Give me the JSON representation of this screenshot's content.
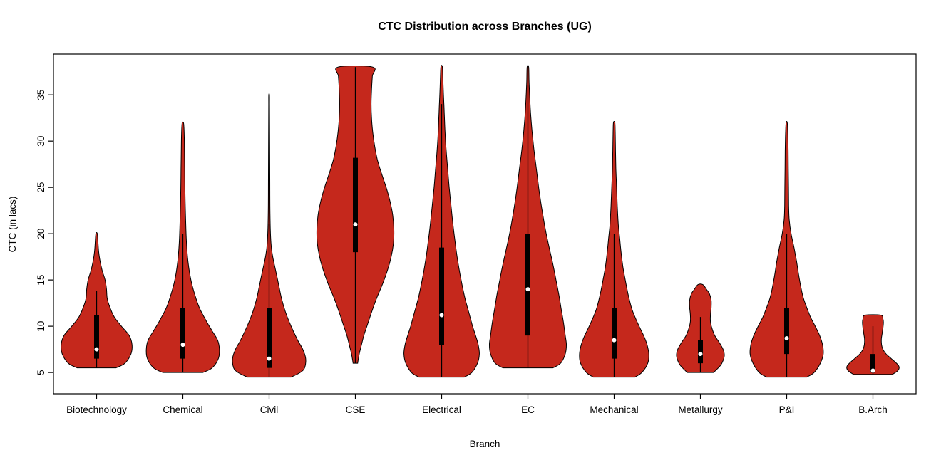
{
  "chart_data": {
    "type": "violin",
    "title": "CTC Distribution across Branches (UG)",
    "xlabel": "Branch",
    "ylabel": "CTC (in lacs)",
    "y_ticks": [
      5,
      10,
      15,
      20,
      25,
      30,
      35
    ],
    "y_domain": [
      2.7,
      39.4
    ],
    "grid": false,
    "legend": "none",
    "colors": {
      "violin_fill": "#C5281C",
      "violin_stroke": "#000000",
      "box": "#000000",
      "whisker": "#000000",
      "median_dot": "#FFFFFF",
      "frame": "#000000"
    },
    "categories": [
      "Biotechnology",
      "Chemical",
      "Civil",
      "CSE",
      "Electrical",
      "EC",
      "Mechanical",
      "Metallurgy",
      "P&I",
      "B.Arch"
    ],
    "series": [
      {
        "name": "Biotechnology",
        "min": 5.5,
        "max": 20,
        "q1": 6.5,
        "median": 7.5,
        "q3": 11.2,
        "whisker_low": 5.5,
        "whisker_high": 13.8,
        "wex": 0.92,
        "profile": [
          [
            5.5,
            0.55
          ],
          [
            6,
            0.8
          ],
          [
            7,
            0.97
          ],
          [
            8,
            1.0
          ],
          [
            9,
            0.92
          ],
          [
            10,
            0.7
          ],
          [
            11,
            0.5
          ],
          [
            12,
            0.38
          ],
          [
            13,
            0.3
          ],
          [
            14,
            0.28
          ],
          [
            15,
            0.24
          ],
          [
            16,
            0.16
          ],
          [
            17,
            0.1
          ],
          [
            18,
            0.06
          ],
          [
            19,
            0.04
          ],
          [
            20,
            0.02
          ]
        ]
      },
      {
        "name": "Chemical",
        "min": 5,
        "max": 32,
        "q1": 6.5,
        "median": 8,
        "q3": 12,
        "whisker_low": 5,
        "whisker_high": 20,
        "wex": 0.95,
        "profile": [
          [
            5,
            0.55
          ],
          [
            5.5,
            0.8
          ],
          [
            6.5,
            0.97
          ],
          [
            7.5,
            1.0
          ],
          [
            8.5,
            0.95
          ],
          [
            9.5,
            0.8
          ],
          [
            10.5,
            0.65
          ],
          [
            12,
            0.45
          ],
          [
            13.5,
            0.32
          ],
          [
            15,
            0.22
          ],
          [
            17,
            0.14
          ],
          [
            19,
            0.1
          ],
          [
            21,
            0.08
          ],
          [
            24,
            0.06
          ],
          [
            27,
            0.05
          ],
          [
            30,
            0.04
          ],
          [
            31.5,
            0.03
          ],
          [
            32,
            0.015
          ]
        ]
      },
      {
        "name": "Civil",
        "min": 4.5,
        "max": 35,
        "q1": 5.5,
        "median": 6.5,
        "q3": 12,
        "whisker_low": 4.5,
        "whisker_high": 21,
        "wex": 0.95,
        "profile": [
          [
            4.5,
            0.6
          ],
          [
            5,
            0.85
          ],
          [
            5.5,
            0.97
          ],
          [
            6.5,
            1.0
          ],
          [
            7.5,
            0.92
          ],
          [
            8.5,
            0.78
          ],
          [
            10,
            0.6
          ],
          [
            11.5,
            0.45
          ],
          [
            13,
            0.34
          ],
          [
            14.5,
            0.26
          ],
          [
            16,
            0.18
          ],
          [
            17.5,
            0.1
          ],
          [
            19,
            0.05
          ],
          [
            22,
            0.025
          ],
          [
            26,
            0.02
          ],
          [
            30,
            0.015
          ],
          [
            34,
            0.012
          ],
          [
            35,
            0.01
          ]
        ]
      },
      {
        "name": "CSE",
        "min": 6,
        "max": 38,
        "q1": 18,
        "median": 21,
        "q3": 28.2,
        "whisker_low": 6,
        "whisker_high": 38,
        "wex": 1.0,
        "profile": [
          [
            6,
            0.06
          ],
          [
            7,
            0.1
          ],
          [
            8,
            0.16
          ],
          [
            9,
            0.22
          ],
          [
            10,
            0.3
          ],
          [
            11.5,
            0.42
          ],
          [
            13,
            0.55
          ],
          [
            14.5,
            0.7
          ],
          [
            16,
            0.83
          ],
          [
            17.5,
            0.93
          ],
          [
            19,
            0.99
          ],
          [
            20.5,
            1.0
          ],
          [
            22,
            0.97
          ],
          [
            23.5,
            0.9
          ],
          [
            25,
            0.8
          ],
          [
            26.5,
            0.68
          ],
          [
            28,
            0.57
          ],
          [
            29.5,
            0.5
          ],
          [
            31,
            0.45
          ],
          [
            32.5,
            0.42
          ],
          [
            34,
            0.41
          ],
          [
            35.5,
            0.42
          ],
          [
            37,
            0.44
          ],
          [
            38,
            0.45
          ]
        ]
      },
      {
        "name": "Electrical",
        "min": 4.5,
        "max": 38,
        "q1": 8,
        "median": 11.2,
        "q3": 18.5,
        "whisker_low": 4.5,
        "whisker_high": 34,
        "wex": 0.98,
        "profile": [
          [
            4.5,
            0.6
          ],
          [
            5,
            0.8
          ],
          [
            6,
            0.95
          ],
          [
            7,
            1.0
          ],
          [
            8,
            0.97
          ],
          [
            9,
            0.9
          ],
          [
            10,
            0.82
          ],
          [
            11.5,
            0.72
          ],
          [
            13,
            0.62
          ],
          [
            14.5,
            0.54
          ],
          [
            16,
            0.47
          ],
          [
            17.5,
            0.41
          ],
          [
            19,
            0.36
          ],
          [
            21,
            0.3
          ],
          [
            23,
            0.25
          ],
          [
            25,
            0.2
          ],
          [
            27,
            0.16
          ],
          [
            29,
            0.12
          ],
          [
            31,
            0.09
          ],
          [
            33,
            0.07
          ],
          [
            35,
            0.05
          ],
          [
            36.5,
            0.035
          ],
          [
            38,
            0.02
          ]
        ]
      },
      {
        "name": "EC",
        "min": 5.5,
        "max": 38,
        "q1": 9,
        "median": 14,
        "q3": 20,
        "whisker_low": 5.5,
        "whisker_high": 36,
        "wex": 1.0,
        "profile": [
          [
            5.5,
            0.65
          ],
          [
            6,
            0.85
          ],
          [
            7,
            0.97
          ],
          [
            8,
            1.0
          ],
          [
            9,
            0.97
          ],
          [
            10.5,
            0.92
          ],
          [
            12,
            0.86
          ],
          [
            13.5,
            0.8
          ],
          [
            15,
            0.73
          ],
          [
            16.5,
            0.66
          ],
          [
            18,
            0.58
          ],
          [
            19.5,
            0.5
          ],
          [
            21,
            0.43
          ],
          [
            23,
            0.35
          ],
          [
            25,
            0.28
          ],
          [
            27,
            0.22
          ],
          [
            29,
            0.16
          ],
          [
            31,
            0.11
          ],
          [
            33,
            0.07
          ],
          [
            35,
            0.045
          ],
          [
            36.5,
            0.03
          ],
          [
            38,
            0.02
          ]
        ]
      },
      {
        "name": "Mechanical",
        "min": 4.5,
        "max": 32,
        "q1": 6.5,
        "median": 8.5,
        "q3": 12,
        "whisker_low": 4.5,
        "whisker_high": 20,
        "wex": 0.9,
        "profile": [
          [
            4.5,
            0.6
          ],
          [
            5,
            0.8
          ],
          [
            6,
            0.97
          ],
          [
            7,
            1.0
          ],
          [
            8,
            0.95
          ],
          [
            9,
            0.85
          ],
          [
            10,
            0.72
          ],
          [
            11,
            0.6
          ],
          [
            12,
            0.5
          ],
          [
            13.5,
            0.4
          ],
          [
            15,
            0.32
          ],
          [
            16.5,
            0.25
          ],
          [
            18,
            0.2
          ],
          [
            19.5,
            0.16
          ],
          [
            21,
            0.12
          ],
          [
            23,
            0.09
          ],
          [
            25,
            0.07
          ],
          [
            27,
            0.05
          ],
          [
            29,
            0.04
          ],
          [
            31,
            0.03
          ],
          [
            32,
            0.02
          ]
        ]
      },
      {
        "name": "Metallurgy",
        "min": 5,
        "max": 14.5,
        "q1": 6,
        "median": 7,
        "q3": 8.5,
        "whisker_low": 5,
        "whisker_high": 11,
        "wex": 0.62,
        "profile": [
          [
            5,
            0.55
          ],
          [
            5.5,
            0.75
          ],
          [
            6,
            0.9
          ],
          [
            6.8,
            1.0
          ],
          [
            7.5,
            0.95
          ],
          [
            8.2,
            0.8
          ],
          [
            9,
            0.6
          ],
          [
            9.8,
            0.48
          ],
          [
            10.5,
            0.42
          ],
          [
            11.2,
            0.42
          ],
          [
            12,
            0.45
          ],
          [
            12.8,
            0.45
          ],
          [
            13.5,
            0.38
          ],
          [
            14,
            0.25
          ],
          [
            14.5,
            0.1
          ]
        ]
      },
      {
        "name": "P&I",
        "min": 4.5,
        "max": 32,
        "q1": 7,
        "median": 8.7,
        "q3": 12,
        "whisker_low": 4.5,
        "whisker_high": 20,
        "wex": 0.95,
        "profile": [
          [
            4.5,
            0.55
          ],
          [
            5,
            0.75
          ],
          [
            6,
            0.92
          ],
          [
            7,
            1.0
          ],
          [
            8,
            0.98
          ],
          [
            9,
            0.9
          ],
          [
            10,
            0.78
          ],
          [
            11,
            0.65
          ],
          [
            12,
            0.55
          ],
          [
            13,
            0.46
          ],
          [
            14,
            0.4
          ],
          [
            15.5,
            0.33
          ],
          [
            17,
            0.27
          ],
          [
            18.5,
            0.2
          ],
          [
            20,
            0.12
          ],
          [
            21.5,
            0.07
          ],
          [
            23,
            0.055
          ],
          [
            25,
            0.05
          ],
          [
            27,
            0.045
          ],
          [
            29,
            0.04
          ],
          [
            31,
            0.03
          ],
          [
            32,
            0.015
          ]
        ]
      },
      {
        "name": "B.Arch",
        "min": 4.8,
        "max": 11.2,
        "q1": 5,
        "median": 5.2,
        "q3": 7,
        "whisker_low": 4.8,
        "whisker_high": 10,
        "wex": 0.68,
        "profile": [
          [
            4.8,
            0.75
          ],
          [
            5.2,
            0.95
          ],
          [
            5.6,
            1.0
          ],
          [
            6,
            0.9
          ],
          [
            6.5,
            0.7
          ],
          [
            7,
            0.5
          ],
          [
            7.5,
            0.38
          ],
          [
            8,
            0.33
          ],
          [
            8.6,
            0.32
          ],
          [
            9.2,
            0.35
          ],
          [
            9.8,
            0.38
          ],
          [
            10.4,
            0.4
          ],
          [
            10.8,
            0.38
          ],
          [
            11.2,
            0.3
          ]
        ]
      }
    ]
  }
}
